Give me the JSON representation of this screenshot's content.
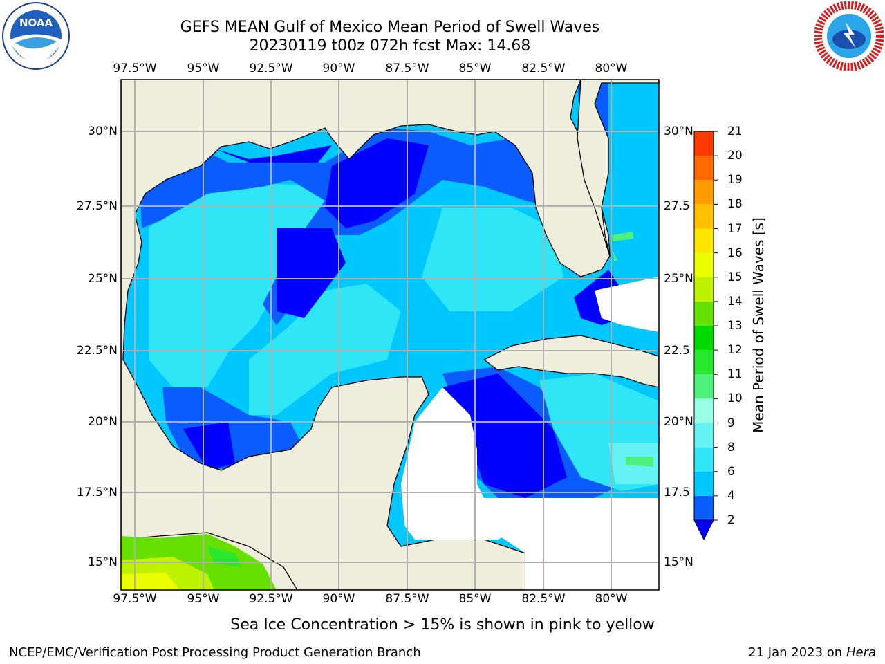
{
  "header": {
    "title_line1": "GEFS MEAN Gulf of Mexico Mean Period of Swell Waves",
    "title_line2": "20230119 t00z 072h fcst   Max: 14.68"
  },
  "logos": {
    "left": "NOAA",
    "right": "NATIONAL WEATHER SERVICE"
  },
  "map": {
    "lon_labels": [
      "97.5°W",
      "95°W",
      "92.5°W",
      "90°W",
      "87.5°W",
      "85°W",
      "82.5°W",
      "80°W"
    ],
    "lat_labels_left": [
      "30°N",
      "27.5°N",
      "25°N",
      "22.5°N",
      "20°N",
      "17.5°N",
      "15°N"
    ],
    "lat_labels_right": [
      "30°N",
      "27.5",
      "25°N",
      "22.5",
      "20°N",
      "17.5",
      "15°N"
    ]
  },
  "colorbar": {
    "title": "Mean Period of Swell Waves [s]",
    "ticks": [
      "2",
      "4",
      "6",
      "8",
      "9",
      "10",
      "11",
      "12",
      "13",
      "14",
      "15",
      "16",
      "17",
      "18",
      "19",
      "20",
      "21"
    ],
    "colors": [
      "#0a5cff",
      "#00c8ff",
      "#2ee6f5",
      "#66f2f2",
      "#99ffe6",
      "#4df07a",
      "#29e62e",
      "#00d900",
      "#66e000",
      "#bff200",
      "#ecff00",
      "#ffe600",
      "#ffc000",
      "#ff9c00",
      "#ff6a00",
      "#ff3a00",
      "#ff0000"
    ],
    "extend_color": "#0000ff"
  },
  "footer": {
    "note": "Sea Ice Concentration > 15% is shown in pink to yellow",
    "left": "NCEP/EMC/Verification Post Processing Product Generation Branch",
    "right_date": "21 Jan 2023 on ",
    "right_host": "Hera"
  }
}
